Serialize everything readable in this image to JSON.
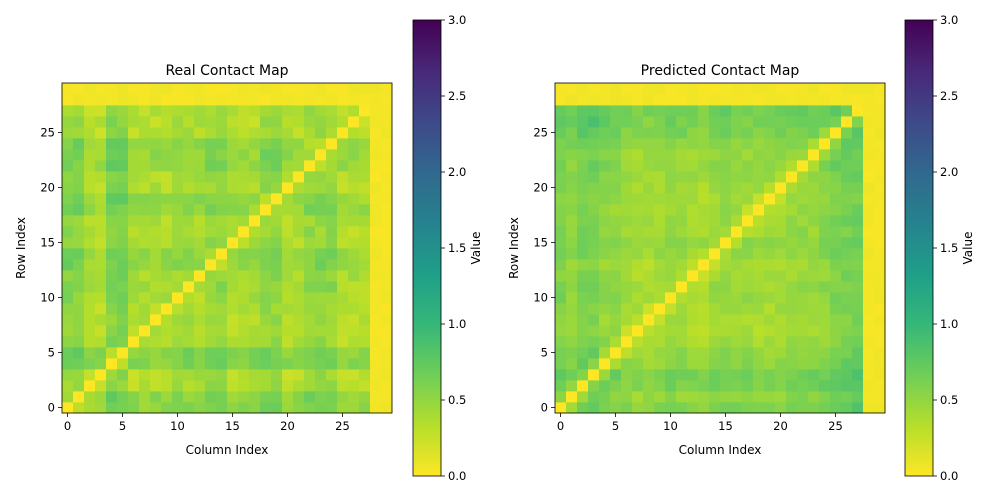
{
  "colors": {
    "viridis_reversed_stops": [
      "#fde725",
      "#b5de2b",
      "#6ece58",
      "#35b779",
      "#1f9e89",
      "#26828e",
      "#31688e",
      "#3e4989",
      "#482878",
      "#440154"
    ]
  },
  "chart_data": [
    {
      "type": "heatmap",
      "title": "Real Contact Map",
      "xlabel": "Column Index",
      "ylabel": "Row Index",
      "colorbar_label": "Value",
      "shape": [
        30,
        30
      ],
      "clim": [
        0,
        3
      ],
      "colormap": "viridis_r",
      "origin": "lower",
      "xticks": [
        0,
        5,
        10,
        15,
        20,
        25
      ],
      "yticks": [
        0,
        5,
        10,
        15,
        20,
        25
      ],
      "colorbar_ticks": [
        0.0,
        0.5,
        1.0,
        1.5,
        2.0,
        2.5,
        3.0
      ],
      "block_boundaries": [
        0,
        2,
        4,
        6,
        10,
        13,
        15,
        18,
        20,
        22,
        25,
        28
      ],
      "block_base_values": [
        0.65,
        0.3,
        0.75,
        0.35,
        0.45,
        0.6,
        0.35,
        0.6,
        0.35,
        0.6,
        0.3,
        0.7
      ],
      "padding_rows_from": 28,
      "diagonal_value": 0.0
    },
    {
      "type": "heatmap",
      "title": "Predicted Contact Map",
      "xlabel": "Column Index",
      "ylabel": "Row Index",
      "colorbar_label": "Value",
      "shape": [
        30,
        30
      ],
      "clim": [
        0,
        3
      ],
      "colormap": "viridis_r",
      "origin": "lower",
      "xticks": [
        0,
        5,
        10,
        15,
        20,
        25
      ],
      "yticks": [
        0,
        5,
        10,
        15,
        20,
        25
      ],
      "colorbar_ticks": [
        0.0,
        0.5,
        1.0,
        1.5,
        2.0,
        2.5,
        3.0
      ],
      "index_profile": [
        0.7,
        0.55,
        0.75,
        0.8,
        0.6,
        0.55,
        0.4,
        0.35,
        0.35,
        0.4,
        0.5,
        0.45,
        0.4,
        0.35,
        0.5,
        0.55,
        0.45,
        0.45,
        0.4,
        0.4,
        0.45,
        0.5,
        0.55,
        0.5,
        0.6,
        0.75,
        0.8,
        0.85
      ],
      "padding_rows_from": 28,
      "diagonal_value": 0.0
    }
  ]
}
